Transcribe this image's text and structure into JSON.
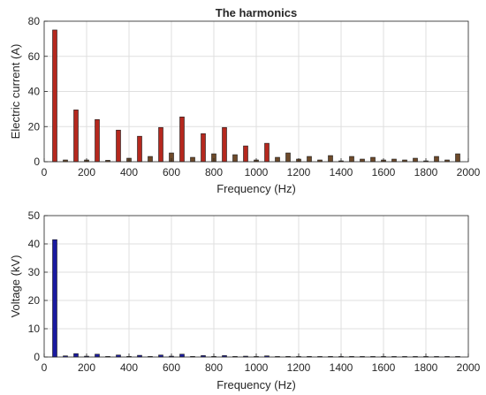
{
  "chart_data": [
    {
      "type": "bar",
      "title": "The harmonics",
      "xlabel": "Frequency (Hz)",
      "ylabel": "Electric current (A)",
      "xlim": [
        0,
        2000
      ],
      "ylim": [
        0,
        80
      ],
      "xticks": [
        0,
        200,
        400,
        600,
        800,
        1000,
        1200,
        1400,
        1600,
        1800,
        2000
      ],
      "yticks": [
        0,
        20,
        40,
        60,
        80
      ],
      "grid": true,
      "colors": {
        "dominant": "#b5281e",
        "minor": "#6e4a2a",
        "edge": "#1a1a1a"
      },
      "x": [
        50,
        100,
        150,
        200,
        250,
        300,
        350,
        400,
        450,
        500,
        550,
        600,
        650,
        700,
        750,
        800,
        850,
        900,
        950,
        1000,
        1050,
        1100,
        1150,
        1200,
        1250,
        1300,
        1350,
        1400,
        1450,
        1500,
        1550,
        1600,
        1650,
        1700,
        1750,
        1800,
        1850,
        1900,
        1950
      ],
      "values": [
        75,
        1,
        29.5,
        1,
        24,
        0.8,
        18,
        2,
        14.5,
        3,
        19.5,
        5,
        25.5,
        2.5,
        16,
        4.5,
        19.5,
        4,
        9,
        1,
        10.5,
        2.5,
        5,
        1.5,
        3,
        1,
        3.5,
        0.5,
        3,
        1.5,
        2.5,
        1,
        1.5,
        1,
        2,
        0.5,
        3,
        1,
        4.5
      ]
    },
    {
      "type": "bar",
      "title": "",
      "xlabel": "Frequency (Hz)",
      "ylabel": "Voltage (kV)",
      "xlim": [
        0,
        2000
      ],
      "ylim": [
        0,
        50
      ],
      "xticks": [
        0,
        200,
        400,
        600,
        800,
        1000,
        1200,
        1400,
        1600,
        1800,
        2000
      ],
      "yticks": [
        0,
        10,
        20,
        30,
        40,
        50
      ],
      "grid": true,
      "colors": {
        "bar": "#1a1aa0",
        "edge": "#1a1a1a"
      },
      "x": [
        50,
        100,
        150,
        200,
        250,
        300,
        350,
        400,
        450,
        500,
        550,
        600,
        650,
        700,
        750,
        800,
        850,
        900,
        950,
        1000,
        1050,
        1100,
        1150,
        1200,
        1250,
        1300,
        1350,
        1400,
        1450,
        1500,
        1550,
        1600,
        1650,
        1700,
        1750,
        1800,
        1850,
        1900,
        1950
      ],
      "values": [
        41.5,
        0.4,
        1.2,
        0.3,
        1.0,
        0.2,
        0.7,
        0.2,
        0.6,
        0.2,
        0.7,
        0.3,
        1.0,
        0.2,
        0.5,
        0.2,
        0.5,
        0.2,
        0.3,
        0.1,
        0.4,
        0.1,
        0.2,
        0.1,
        0.2,
        0.1,
        0.2,
        0.1,
        0.2,
        0.1,
        0.1,
        0.1,
        0.1,
        0.1,
        0.1,
        0.1,
        0.1,
        0.1,
        0.1
      ]
    }
  ]
}
